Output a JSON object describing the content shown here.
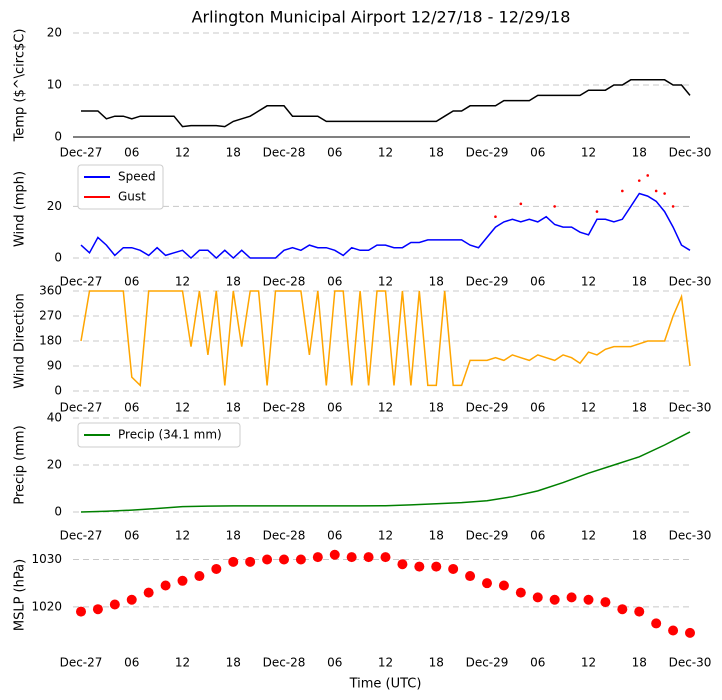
{
  "chart_data": [
    {
      "type": "line",
      "title": "Arlington Municipal Airport 12/27/18 - 12/29/18",
      "ylabel": "Temp ($^\\circ$C)",
      "axis_line": true,
      "x": [
        0,
        1,
        2,
        3,
        4,
        5,
        6,
        7,
        8,
        9,
        10,
        11,
        12,
        13,
        14,
        15,
        16,
        17,
        18,
        19,
        20,
        21,
        22,
        23,
        24,
        25,
        26,
        27,
        28,
        29,
        30,
        31,
        32,
        33,
        34,
        35,
        36,
        37,
        38,
        39,
        40,
        41,
        42,
        43,
        44,
        45,
        46,
        47,
        48,
        49,
        50,
        51,
        52,
        53,
        54,
        55,
        56,
        57,
        58,
        59,
        60,
        61,
        62,
        63,
        64,
        65,
        66,
        67,
        68,
        69,
        70,
        71,
        72
      ],
      "series": [
        {
          "color": "#000000",
          "values": [
            5,
            5,
            5,
            3.5,
            4,
            4,
            3.5,
            4,
            4,
            4,
            4,
            4,
            2,
            2.2,
            2.2,
            2.2,
            2.2,
            2,
            3,
            3.5,
            4,
            5,
            6,
            6,
            6,
            4,
            4,
            4,
            4,
            3,
            3,
            3,
            3,
            3,
            3,
            3,
            3,
            3,
            3,
            3,
            3,
            3,
            3,
            4,
            5,
            5,
            6,
            6,
            6,
            6,
            7,
            7,
            7,
            7,
            8,
            8,
            8,
            8,
            8,
            8,
            9,
            9,
            9,
            10,
            10,
            11,
            11,
            11,
            11,
            11,
            10,
            10,
            8
          ]
        }
      ],
      "xlim": [
        0,
        72
      ],
      "ylim": [
        0,
        20
      ],
      "yticks": [
        0,
        10,
        20
      ],
      "xticks": [
        {
          "value": 0,
          "label": "Dec-27"
        },
        {
          "value": 6,
          "label": "06"
        },
        {
          "value": 12,
          "label": "12"
        },
        {
          "value": 18,
          "label": "18"
        },
        {
          "value": 24,
          "label": "Dec-28"
        },
        {
          "value": 30,
          "label": "06"
        },
        {
          "value": 36,
          "label": "12"
        },
        {
          "value": 42,
          "label": "18"
        },
        {
          "value": 48,
          "label": "Dec-29"
        },
        {
          "value": 54,
          "label": "06"
        },
        {
          "value": 60,
          "label": "12"
        },
        {
          "value": 66,
          "label": "18"
        },
        {
          "value": 72,
          "label": "Dec-30"
        }
      ]
    },
    {
      "type": "line",
      "ylabel": "Wind (mph)",
      "x": [
        0,
        1,
        2,
        3,
        4,
        5,
        6,
        7,
        8,
        9,
        10,
        11,
        12,
        13,
        14,
        15,
        16,
        17,
        18,
        19,
        20,
        21,
        22,
        23,
        24,
        25,
        26,
        27,
        28,
        29,
        30,
        31,
        32,
        33,
        34,
        35,
        36,
        37,
        38,
        39,
        40,
        41,
        42,
        43,
        44,
        45,
        46,
        47,
        48,
        49,
        50,
        51,
        52,
        53,
        54,
        55,
        56,
        57,
        58,
        59,
        60,
        61,
        62,
        63,
        64,
        65,
        66,
        67,
        68,
        69,
        70,
        71,
        72
      ],
      "series": [
        {
          "name": "Speed",
          "color": "#0000ff",
          "style": "line",
          "values": [
            5,
            2,
            8,
            5,
            1,
            4,
            4,
            3,
            1,
            4,
            1,
            2,
            3,
            0,
            3,
            3,
            0,
            3,
            0,
            3,
            0,
            0,
            0,
            0,
            3,
            4,
            3,
            5,
            4,
            4,
            3,
            1,
            4,
            3,
            3,
            5,
            5,
            4,
            4,
            6,
            6,
            7,
            7,
            7,
            7,
            7,
            5,
            4,
            8,
            12,
            14,
            15,
            14,
            15,
            14,
            16,
            13,
            12,
            12,
            10,
            9,
            15,
            15,
            14,
            15,
            20,
            25,
            24,
            22,
            18,
            12,
            5,
            3
          ]
        },
        {
          "name": "Gust",
          "color": "#ff0000",
          "style": "dots",
          "values": [
            null,
            null,
            null,
            null,
            null,
            null,
            null,
            null,
            null,
            null,
            null,
            null,
            null,
            null,
            null,
            null,
            null,
            null,
            null,
            null,
            null,
            null,
            null,
            null,
            null,
            null,
            null,
            null,
            null,
            null,
            null,
            null,
            null,
            null,
            null,
            null,
            null,
            null,
            null,
            null,
            null,
            null,
            null,
            null,
            null,
            null,
            null,
            null,
            null,
            16,
            null,
            null,
            21,
            null,
            null,
            null,
            20,
            null,
            null,
            null,
            null,
            18,
            null,
            null,
            26,
            null,
            30,
            32,
            26,
            25,
            20,
            null,
            null
          ]
        }
      ],
      "xlim": [
        0,
        72
      ],
      "ylim": [
        0,
        38
      ],
      "yticks": [
        0,
        20
      ],
      "xticks": [
        {
          "value": 0,
          "label": "Dec-27"
        },
        {
          "value": 6,
          "label": "06"
        },
        {
          "value": 12,
          "label": "12"
        },
        {
          "value": 18,
          "label": "18"
        },
        {
          "value": 24,
          "label": "Dec-28"
        },
        {
          "value": 30,
          "label": "06"
        },
        {
          "value": 36,
          "label": "12"
        },
        {
          "value": 42,
          "label": "18"
        },
        {
          "value": 48,
          "label": "Dec-29"
        },
        {
          "value": 54,
          "label": "06"
        },
        {
          "value": 60,
          "label": "12"
        },
        {
          "value": 66,
          "label": "18"
        },
        {
          "value": 72,
          "label": "Dec-30"
        }
      ]
    },
    {
      "type": "line",
      "ylabel": "Wind Direction",
      "x": [
        0,
        1,
        2,
        3,
        4,
        5,
        6,
        7,
        8,
        9,
        10,
        11,
        12,
        13,
        14,
        15,
        16,
        17,
        18,
        19,
        20,
        21,
        22,
        23,
        24,
        25,
        26,
        27,
        28,
        29,
        30,
        31,
        32,
        33,
        34,
        35,
        36,
        37,
        38,
        39,
        40,
        41,
        42,
        43,
        44,
        45,
        46,
        47,
        48,
        49,
        50,
        51,
        52,
        53,
        54,
        55,
        56,
        57,
        58,
        59,
        60,
        61,
        62,
        63,
        64,
        65,
        66,
        67,
        68,
        69,
        70,
        71,
        72
      ],
      "series": [
        {
          "color": "#ffa500",
          "values": [
            180,
            360,
            360,
            360,
            360,
            360,
            50,
            20,
            360,
            360,
            360,
            360,
            360,
            160,
            360,
            130,
            360,
            20,
            360,
            160,
            360,
            360,
            20,
            360,
            360,
            360,
            360,
            130,
            360,
            20,
            360,
            360,
            20,
            360,
            20,
            360,
            360,
            20,
            360,
            20,
            360,
            20,
            20,
            360,
            20,
            20,
            110,
            110,
            110,
            120,
            110,
            130,
            120,
            110,
            130,
            120,
            110,
            130,
            120,
            100,
            140,
            130,
            150,
            160,
            160,
            160,
            170,
            180,
            180,
            180,
            270,
            340,
            90
          ]
        }
      ],
      "xlim": [
        0,
        72
      ],
      "ylim": [
        0,
        360
      ],
      "yticks": [
        0,
        90,
        180,
        270,
        360
      ],
      "xticks": [
        {
          "value": 0,
          "label": "Dec-27"
        },
        {
          "value": 6,
          "label": "06"
        },
        {
          "value": 12,
          "label": "12"
        },
        {
          "value": 18,
          "label": "18"
        },
        {
          "value": 24,
          "label": "Dec-28"
        },
        {
          "value": 30,
          "label": "06"
        },
        {
          "value": 36,
          "label": "12"
        },
        {
          "value": 42,
          "label": "18"
        },
        {
          "value": 48,
          "label": "Dec-29"
        },
        {
          "value": 54,
          "label": "06"
        },
        {
          "value": 60,
          "label": "12"
        },
        {
          "value": 66,
          "label": "18"
        },
        {
          "value": 72,
          "label": "Dec-30"
        }
      ]
    },
    {
      "type": "line",
      "ylabel": "Precip (mm)",
      "x": [
        0,
        3,
        6,
        9,
        12,
        15,
        18,
        21,
        24,
        27,
        30,
        33,
        36,
        39,
        42,
        45,
        48,
        51,
        54,
        57,
        60,
        63,
        66,
        69,
        72
      ],
      "series": [
        {
          "name": "Precip (34.1 mm)",
          "color": "#008000",
          "style": "line",
          "values": [
            0,
            0.3,
            0.8,
            1.5,
            2.3,
            2.5,
            2.6,
            2.6,
            2.6,
            2.6,
            2.6,
            2.6,
            2.7,
            3,
            3.5,
            4,
            4.8,
            6.5,
            9,
            12.5,
            16.5,
            20,
            23.5,
            28.5,
            34.1
          ]
        }
      ],
      "xlim": [
        0,
        72
      ],
      "ylim": [
        0,
        40
      ],
      "yticks": [
        0,
        20,
        40
      ],
      "xticks": [
        {
          "value": 0,
          "label": "Dec-27"
        },
        {
          "value": 6,
          "label": "06"
        },
        {
          "value": 12,
          "label": "12"
        },
        {
          "value": 18,
          "label": "18"
        },
        {
          "value": 24,
          "label": "Dec-28"
        },
        {
          "value": 30,
          "label": "06"
        },
        {
          "value": 36,
          "label": "12"
        },
        {
          "value": 42,
          "label": "18"
        },
        {
          "value": 48,
          "label": "Dec-29"
        },
        {
          "value": 54,
          "label": "06"
        },
        {
          "value": 60,
          "label": "12"
        },
        {
          "value": 66,
          "label": "18"
        },
        {
          "value": 72,
          "label": "Dec-30"
        }
      ]
    },
    {
      "type": "scatter",
      "ylabel": "MSLP (hPa)",
      "xlabel": "Time (UTC)",
      "x": [
        0,
        2,
        4,
        6,
        8,
        10,
        12,
        14,
        16,
        18,
        20,
        22,
        24,
        26,
        28,
        30,
        32,
        34,
        36,
        38,
        40,
        42,
        44,
        46,
        48,
        50,
        52,
        54,
        56,
        58,
        60,
        62,
        64,
        66,
        68,
        70,
        72
      ],
      "series": [
        {
          "color": "#ff0000",
          "values": [
            1019,
            1019.5,
            1020.5,
            1021.5,
            1023,
            1024.5,
            1025.5,
            1026.5,
            1028,
            1029.5,
            1029.5,
            1030,
            1030,
            1030,
            1030.5,
            1031,
            1030.5,
            1030.5,
            1030.5,
            1029,
            1028.5,
            1028.5,
            1028,
            1026.5,
            1025,
            1024.5,
            1023,
            1022,
            1021.5,
            1022,
            1021.5,
            1021,
            1019.5,
            1019,
            1016.5,
            1015,
            1014.5
          ]
        }
      ],
      "xlim": [
        0,
        72
      ],
      "ylim": [
        1013,
        1032
      ],
      "yticks": [
        1020,
        1030
      ],
      "xticks": [
        {
          "value": 0,
          "label": "Dec-27"
        },
        {
          "value": 6,
          "label": "06"
        },
        {
          "value": 12,
          "label": "12"
        },
        {
          "value": 18,
          "label": "18"
        },
        {
          "value": 24,
          "label": "Dec-28"
        },
        {
          "value": 30,
          "label": "06"
        },
        {
          "value": 36,
          "label": "12"
        },
        {
          "value": 42,
          "label": "18"
        },
        {
          "value": 48,
          "label": "Dec-29"
        },
        {
          "value": 54,
          "label": "06"
        },
        {
          "value": 60,
          "label": "12"
        },
        {
          "value": 66,
          "label": "18"
        },
        {
          "value": 72,
          "label": "Dec-30"
        }
      ]
    }
  ]
}
